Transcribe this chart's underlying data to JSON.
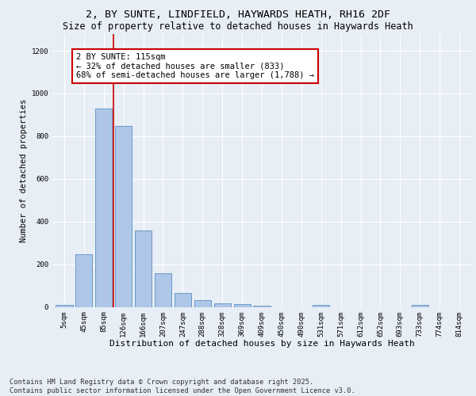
{
  "title1": "2, BY SUNTE, LINDFIELD, HAYWARDS HEATH, RH16 2DF",
  "title2": "Size of property relative to detached houses in Haywards Heath",
  "xlabel": "Distribution of detached houses by size in Haywards Heath",
  "ylabel": "Number of detached properties",
  "bar_labels": [
    "5sqm",
    "45sqm",
    "85sqm",
    "126sqm",
    "166sqm",
    "207sqm",
    "247sqm",
    "288sqm",
    "328sqm",
    "369sqm",
    "409sqm",
    "450sqm",
    "490sqm",
    "531sqm",
    "571sqm",
    "612sqm",
    "652sqm",
    "693sqm",
    "733sqm",
    "774sqm",
    "814sqm"
  ],
  "bar_values": [
    8,
    248,
    930,
    848,
    358,
    158,
    65,
    30,
    15,
    13,
    5,
    0,
    0,
    10,
    0,
    0,
    0,
    0,
    8,
    0,
    0
  ],
  "bar_color": "#aec6e8",
  "bar_edge_color": "#5a8fc0",
  "vline_x_index": 2.5,
  "vline_color": "#cc0000",
  "annotation_text": "2 BY SUNTE: 115sqm\n← 32% of detached houses are smaller (833)\n68% of semi-detached houses are larger (1,788) →",
  "annotation_box_color": "#ffffff",
  "annotation_box_edge": "#cc0000",
  "ylim": [
    0,
    1280
  ],
  "yticks": [
    0,
    200,
    400,
    600,
    800,
    1000,
    1200
  ],
  "bg_color": "#e8eef5",
  "grid_color": "#ffffff",
  "footnote": "Contains HM Land Registry data © Crown copyright and database right 2025.\nContains public sector information licensed under the Open Government Licence v3.0.",
  "title1_fontsize": 9.5,
  "title2_fontsize": 8.5,
  "xlabel_fontsize": 8,
  "ylabel_fontsize": 7.5,
  "tick_fontsize": 6.5,
  "annot_fontsize": 7.5,
  "footnote_fontsize": 6.2
}
